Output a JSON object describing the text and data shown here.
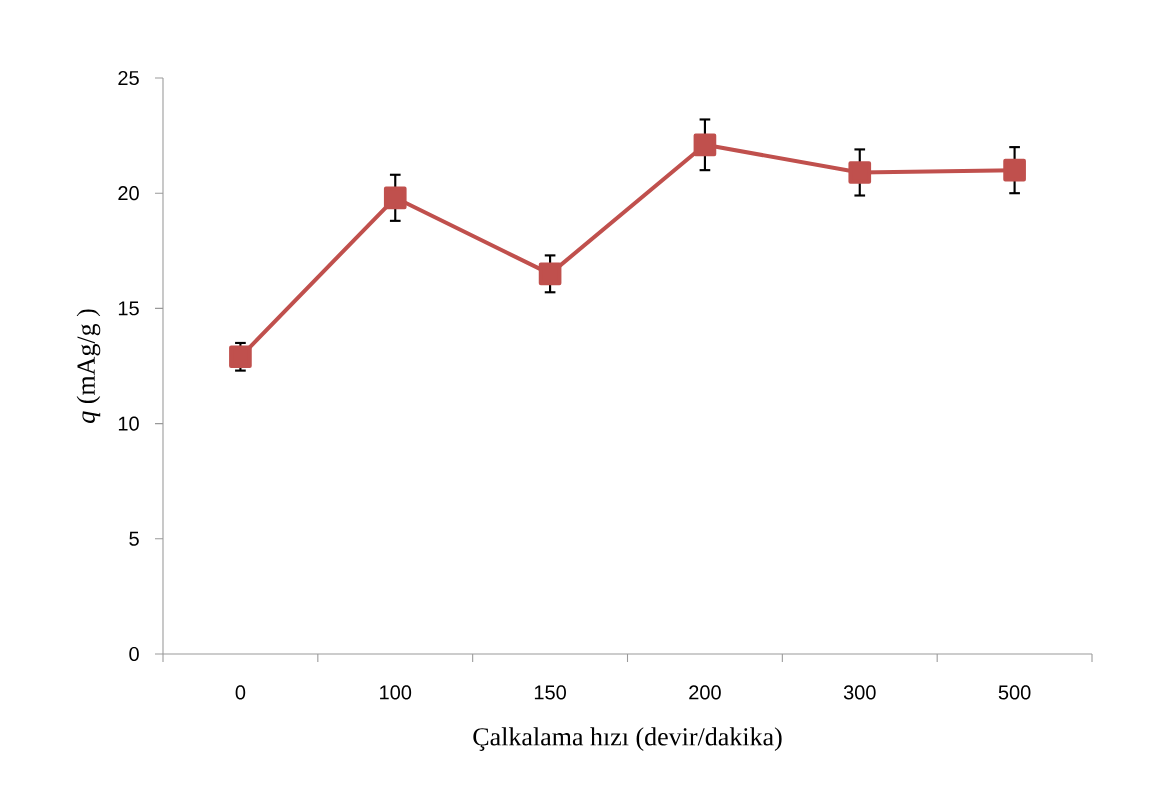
{
  "chart_data": {
    "type": "line",
    "xlabel": "Çalkalama hızı (devir/dakika)",
    "ylabel": "*q* (mAg/g )",
    "categories": [
      "0",
      "100",
      "150",
      "200",
      "300",
      "500"
    ],
    "series": [
      {
        "color": "#c0504d",
        "values": [
          12.9,
          19.8,
          16.5,
          22.1,
          20.9,
          21.0
        ],
        "errors": [
          0.6,
          1.0,
          0.8,
          1.1,
          1.0,
          1.0
        ]
      }
    ],
    "ylim": [
      0,
      25
    ],
    "yticks": [
      0,
      5,
      10,
      15,
      20,
      25
    ],
    "marker": "square",
    "line_style": "solid"
  }
}
